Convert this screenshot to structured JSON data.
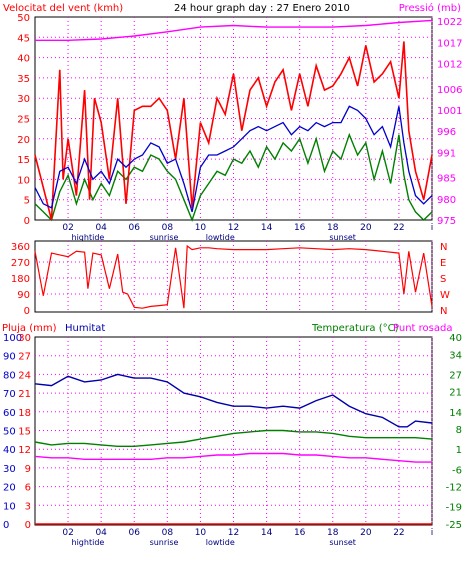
{
  "title": "24 hour graph day : 27 Enero 2010",
  "x_axis": {
    "hour_labels": [
      "02",
      "04",
      "06",
      "08",
      "10",
      "12",
      "14",
      "16",
      "18",
      "20",
      "22",
      "i"
    ],
    "events": [
      {
        "label": "hightide",
        "hour": 3.2
      },
      {
        "label": "sunrise",
        "hour": 7.8
      },
      {
        "label": "lowtide",
        "hour": 11.2
      },
      {
        "label": "sunset",
        "hour": 18.6
      }
    ]
  },
  "colors": {
    "wind": "#ff0000",
    "gust": "#ff0000",
    "avg_wind": "#0000cc",
    "wind_low": "#008000",
    "pressure": "#ff00ff",
    "direction": "#ff0000",
    "humidity": "#0000aa",
    "temperature": "#008000",
    "dewpoint": "#ff00ff",
    "rain": "#ff0000"
  },
  "chart_data": [
    {
      "type": "line",
      "left_axis": {
        "label": "Velocitat del vent (kmh)",
        "ylim": [
          0,
          50
        ],
        "ticks": [
          0,
          5,
          10,
          15,
          20,
          25,
          30,
          35,
          40,
          45,
          50
        ]
      },
      "right_axis": {
        "label": "Pressió (mb)",
        "ylim": [
          975,
          1023
        ],
        "ticks": [
          975,
          980,
          985,
          991,
          996,
          1001,
          1006,
          1012,
          1017,
          1022
        ]
      },
      "xlim": [
        0,
        24
      ],
      "grid": true,
      "series": [
        {
          "key": "gust",
          "x": [
            0,
            0.5,
            1,
            1.2,
            1.5,
            1.7,
            2,
            2.5,
            3,
            3.3,
            3.6,
            4,
            4.5,
            5,
            5.5,
            6,
            6.5,
            7,
            7.5,
            8,
            8.5,
            9,
            9.5,
            10,
            10.5,
            11,
            11.5,
            12,
            12.5,
            13,
            13.5,
            14,
            14.5,
            15,
            15.5,
            16,
            16.5,
            17,
            17.5,
            18,
            18.5,
            19,
            19.5,
            20,
            20.5,
            21,
            21.5,
            22,
            22.3,
            22.6,
            23,
            23.5,
            24
          ],
          "values": [
            16,
            8,
            0,
            15,
            37,
            10,
            20,
            6,
            32,
            5,
            30,
            24,
            10,
            30,
            4,
            27,
            28,
            28,
            30,
            27,
            15,
            30,
            3,
            24,
            19,
            30,
            26,
            36,
            22,
            32,
            35,
            28,
            34,
            37,
            27,
            36,
            28,
            38,
            32,
            33,
            36,
            40,
            33,
            43,
            34,
            36,
            39,
            30,
            44,
            22,
            12,
            5,
            16
          ]
        },
        {
          "key": "avg_wind",
          "x": [
            0,
            0.5,
            1,
            1.5,
            2,
            2.5,
            3,
            3.5,
            4,
            4.5,
            5,
            5.5,
            6,
            6.5,
            7,
            7.5,
            8,
            8.5,
            9,
            9.5,
            10,
            10.5,
            11,
            11.5,
            12,
            12.5,
            13,
            13.5,
            14,
            14.5,
            15,
            15.5,
            16,
            16.5,
            17,
            17.5,
            18,
            18.5,
            19,
            19.5,
            20,
            20.5,
            21,
            21.5,
            22,
            22.3,
            22.6,
            23,
            23.5,
            24
          ],
          "values": [
            8,
            4,
            3,
            12,
            13,
            9,
            15,
            10,
            12,
            9,
            15,
            13,
            15,
            16,
            19,
            18,
            14,
            15,
            9,
            2,
            13,
            16,
            16,
            17,
            18,
            20,
            22,
            23,
            22,
            23,
            24,
            21,
            23,
            22,
            24,
            23,
            24,
            24,
            28,
            27,
            25,
            21,
            23,
            18,
            28,
            19,
            12,
            6,
            4,
            6
          ]
        },
        {
          "key": "wind_low",
          "x": [
            0,
            0.5,
            1,
            1.5,
            2,
            2.5,
            3,
            3.5,
            4,
            4.5,
            5,
            5.5,
            6,
            6.5,
            7,
            7.5,
            8,
            8.5,
            9,
            9.5,
            10,
            10.5,
            11,
            11.5,
            12,
            12.5,
            13,
            13.5,
            14,
            14.5,
            15,
            15.5,
            16,
            16.5,
            17,
            17.5,
            18,
            18.5,
            19,
            19.5,
            20,
            20.5,
            21,
            21.5,
            22,
            22.3,
            22.6,
            23,
            23.5,
            24
          ],
          "values": [
            4,
            2,
            0,
            7,
            11,
            4,
            10,
            5,
            9,
            6,
            12,
            10,
            13,
            12,
            16,
            15,
            12,
            10,
            5,
            0,
            6,
            9,
            12,
            11,
            15,
            14,
            17,
            13,
            18,
            15,
            19,
            17,
            20,
            14,
            20,
            12,
            17,
            15,
            21,
            16,
            19,
            10,
            17,
            9,
            21,
            11,
            5,
            2,
            0,
            2
          ]
        },
        {
          "key": "pressure",
          "x": [
            0,
            2,
            4,
            6,
            8,
            10,
            12,
            14,
            16,
            18,
            20,
            22,
            24
          ],
          "values": [
            1017.5,
            1017.5,
            1017.8,
            1018.5,
            1019.5,
            1020.6,
            1021.0,
            1020.6,
            1020.6,
            1020.6,
            1021.0,
            1021.7,
            1022.2
          ]
        }
      ]
    },
    {
      "type": "line",
      "left_axis": {
        "ticks": [
          0,
          90,
          180,
          270,
          360
        ],
        "ylim": [
          0,
          360
        ]
      },
      "right_axis": {
        "ticks": [
          "N",
          "W",
          "S",
          "E",
          "N"
        ]
      },
      "xlim": [
        0,
        24
      ],
      "grid": true,
      "series": [
        {
          "key": "direction",
          "x": [
            0,
            0.5,
            1,
            1.5,
            2,
            2.5,
            3,
            3.2,
            3.5,
            4,
            4.5,
            5,
            5.3,
            5.6,
            6,
            6.5,
            7,
            7.5,
            8,
            8.5,
            9,
            9.2,
            9.5,
            10,
            10.5,
            11,
            12,
            13,
            14,
            15,
            16,
            17,
            18,
            19,
            20,
            21,
            22,
            22.3,
            22.6,
            23,
            23.5,
            24
          ],
          "values": [
            330,
            80,
            320,
            310,
            300,
            330,
            325,
            120,
            320,
            310,
            120,
            315,
            100,
            90,
            15,
            10,
            20,
            25,
            30,
            350,
            10,
            360,
            340,
            350,
            350,
            345,
            340,
            340,
            340,
            345,
            350,
            345,
            340,
            345,
            340,
            330,
            320,
            90,
            330,
            100,
            320,
            20
          ]
        }
      ]
    },
    {
      "type": "line",
      "left_axis": {
        "label": "Pluja (mm)",
        "ylim": [
          0,
          100
        ],
        "ticks": [
          0,
          10,
          20,
          30,
          40,
          50,
          60,
          70,
          80,
          90,
          100
        ]
      },
      "left_axis_2": {
        "label": "Humitat",
        "ylim": [
          0,
          30
        ],
        "ticks": [
          0,
          3,
          6,
          9,
          12,
          15,
          18,
          21,
          24,
          27,
          30
        ]
      },
      "right_axis": {
        "label": "Temperatura (°C)",
        "ylim": [
          -25,
          40
        ],
        "ticks": [
          40,
          34,
          27,
          21,
          14,
          8,
          1,
          -6,
          -12,
          -19,
          -25
        ]
      },
      "right_axis_label_2": "Punt rosada",
      "xlim": [
        0,
        24
      ],
      "grid": true,
      "series": [
        {
          "key": "humidity",
          "x": [
            0,
            1,
            2,
            3,
            4,
            5,
            6,
            7,
            8,
            9,
            10,
            11,
            12,
            13,
            14,
            15,
            16,
            17,
            18,
            19,
            20,
            21,
            22,
            22.5,
            23,
            24
          ],
          "values": [
            75,
            74,
            79,
            76,
            77,
            80,
            78,
            78,
            76,
            70,
            68,
            65,
            63,
            63,
            62,
            63,
            62,
            66,
            69,
            63,
            59,
            57,
            52,
            52,
            55,
            54
          ]
        },
        {
          "key": "temperature",
          "x": [
            0,
            1,
            2,
            3,
            4,
            5,
            6,
            7,
            8,
            9,
            10,
            11,
            12,
            13,
            14,
            15,
            16,
            17,
            18,
            19,
            20,
            21,
            22,
            23,
            24
          ],
          "values": [
            3.5,
            2.5,
            3,
            3,
            2.5,
            2,
            2,
            2.5,
            3,
            3.5,
            4.5,
            5.5,
            6.5,
            7,
            7.5,
            7.5,
            7,
            7,
            6.5,
            5.5,
            5,
            5,
            5,
            5,
            4.5
          ]
        },
        {
          "key": "dewpoint",
          "x": [
            0,
            1,
            2,
            3,
            4,
            5,
            6,
            7,
            8,
            9,
            10,
            11,
            12,
            13,
            14,
            15,
            16,
            17,
            18,
            19,
            20,
            21,
            22,
            23,
            24
          ],
          "values": [
            -1.5,
            -2,
            -2,
            -2.5,
            -2.5,
            -2.5,
            -2.5,
            -2.5,
            -2,
            -2,
            -1.5,
            -1,
            -1,
            -0.5,
            -0.5,
            -0.5,
            -1,
            -1,
            -1.5,
            -2,
            -2,
            -2.5,
            -3,
            -3.5,
            -3.5
          ]
        },
        {
          "key": "rain",
          "x": [
            0,
            24
          ],
          "values": [
            0,
            0
          ]
        }
      ]
    }
  ]
}
